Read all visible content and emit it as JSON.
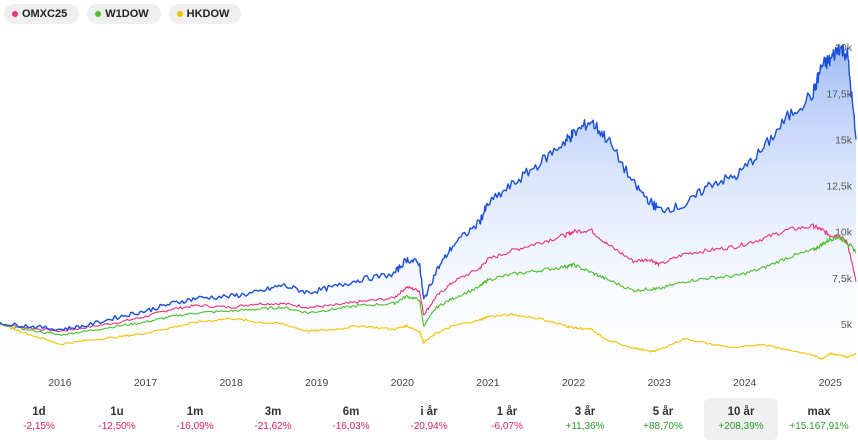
{
  "legend": [
    {
      "label": "OMXC25",
      "color": "#e8347a"
    },
    {
      "label": "W1DOW",
      "color": "#4cbf2a"
    },
    {
      "label": "HKDOW",
      "color": "#f5c000"
    }
  ],
  "colors": {
    "primary_line": "#1a4fd6",
    "area_fill_top": "#8fb0f5",
    "area_fill_bottom": "#ffffff"
  },
  "chart_data": {
    "type": "line",
    "ylim": [
      2500,
      20500
    ],
    "y_ticks": [
      5000,
      7500,
      10000,
      12500,
      15000,
      17500,
      20000
    ],
    "y_tick_labels": [
      "5k",
      "7,5k",
      "10k",
      "12,5k",
      "15k",
      "17,5k",
      "20k"
    ],
    "x_ticks": [
      2016,
      2017,
      2018,
      2019,
      2020,
      2021,
      2022,
      2023,
      2024,
      2025
    ],
    "xlim": [
      2015.3,
      2025.3
    ],
    "series": [
      {
        "name": "",
        "color": "#1a4fd6",
        "area": true,
        "x": [
          2015.3,
          2015.6,
          2016.0,
          2016.3,
          2016.7,
          2017.0,
          2017.3,
          2017.6,
          2018.0,
          2018.3,
          2018.6,
          2018.9,
          2019.2,
          2019.5,
          2019.9,
          2020.05,
          2020.2,
          2020.25,
          2020.4,
          2020.6,
          2020.9,
          2021.0,
          2021.3,
          2021.6,
          2021.9,
          2022.0,
          2022.2,
          2022.4,
          2022.7,
          2022.9,
          2023.0,
          2023.3,
          2023.6,
          2023.9,
          2024.2,
          2024.5,
          2024.8,
          2024.9,
          2025.0,
          2025.1,
          2025.2,
          2025.3
        ],
        "y": [
          5000,
          4900,
          4700,
          4900,
          5400,
          5700,
          6100,
          6400,
          6500,
          6700,
          7100,
          6700,
          7000,
          7400,
          7700,
          8500,
          8300,
          6300,
          7900,
          9300,
          10500,
          11500,
          12600,
          13700,
          14900,
          15300,
          16000,
          15000,
          12600,
          11600,
          11200,
          11400,
          12600,
          13000,
          14400,
          16200,
          17500,
          19000,
          19300,
          20000,
          19600,
          15000
        ]
      },
      {
        "name": "OMXC25",
        "color": "#e8347a",
        "x": [
          2015.3,
          2015.6,
          2016.0,
          2016.3,
          2016.7,
          2017.0,
          2017.3,
          2017.6,
          2018.0,
          2018.3,
          2018.6,
          2018.9,
          2019.2,
          2019.5,
          2019.9,
          2020.05,
          2020.2,
          2020.25,
          2020.4,
          2020.6,
          2020.9,
          2021.0,
          2021.3,
          2021.6,
          2021.9,
          2022.0,
          2022.2,
          2022.4,
          2022.7,
          2022.9,
          2023.0,
          2023.3,
          2023.6,
          2023.9,
          2024.2,
          2024.5,
          2024.8,
          2024.9,
          2025.0,
          2025.1,
          2025.2,
          2025.3
        ],
        "y": [
          5000,
          4800,
          4600,
          4800,
          5100,
          5400,
          5800,
          6000,
          5900,
          6100,
          6100,
          5900,
          6000,
          6200,
          6400,
          7000,
          6800,
          5500,
          6500,
          7300,
          8000,
          8500,
          9000,
          9400,
          9800,
          10000,
          10100,
          9300,
          8400,
          8500,
          8200,
          8800,
          9000,
          9200,
          9600,
          10100,
          10300,
          10100,
          9800,
          9800,
          9400,
          7300
        ]
      },
      {
        "name": "W1DOW",
        "color": "#4cbf2a",
        "x": [
          2015.3,
          2015.6,
          2016.0,
          2016.3,
          2016.7,
          2017.0,
          2017.3,
          2017.6,
          2018.0,
          2018.3,
          2018.6,
          2018.9,
          2019.2,
          2019.5,
          2019.9,
          2020.05,
          2020.2,
          2020.25,
          2020.4,
          2020.6,
          2020.9,
          2021.0,
          2021.3,
          2021.6,
          2021.9,
          2022.0,
          2022.2,
          2022.4,
          2022.7,
          2022.9,
          2023.0,
          2023.3,
          2023.6,
          2023.9,
          2024.2,
          2024.5,
          2024.8,
          2024.9,
          2025.0,
          2025.1,
          2025.2,
          2025.3
        ],
        "y": [
          5000,
          4700,
          4400,
          4600,
          4900,
          5100,
          5400,
          5600,
          5700,
          5800,
          5900,
          5600,
          5800,
          6000,
          6100,
          6500,
          6300,
          4900,
          5900,
          6400,
          7000,
          7400,
          7700,
          7900,
          8100,
          8200,
          7800,
          7400,
          6800,
          6900,
          6900,
          7300,
          7500,
          7600,
          8000,
          8600,
          9000,
          9300,
          9600,
          9700,
          9400,
          8900
        ]
      },
      {
        "name": "HKDOW",
        "color": "#f5c000",
        "x": [
          2015.3,
          2015.6,
          2016.0,
          2016.3,
          2016.7,
          2017.0,
          2017.3,
          2017.6,
          2018.0,
          2018.3,
          2018.6,
          2018.9,
          2019.2,
          2019.5,
          2019.9,
          2020.05,
          2020.2,
          2020.25,
          2020.4,
          2020.6,
          2020.9,
          2021.0,
          2021.3,
          2021.6,
          2021.9,
          2022.0,
          2022.2,
          2022.4,
          2022.7,
          2022.9,
          2023.0,
          2023.3,
          2023.6,
          2023.9,
          2024.2,
          2024.5,
          2024.8,
          2024.9,
          2025.0,
          2025.1,
          2025.2,
          2025.3
        ],
        "y": [
          5000,
          4500,
          3900,
          4100,
          4300,
          4500,
          4800,
          5100,
          5300,
          5100,
          5000,
          4600,
          4700,
          4900,
          4700,
          4900,
          4600,
          4000,
          4500,
          4900,
          5200,
          5400,
          5500,
          5300,
          4900,
          4800,
          4700,
          4100,
          3700,
          3500,
          3600,
          4200,
          3900,
          3700,
          3900,
          3600,
          3300,
          3100,
          3400,
          3300,
          3200,
          3400
        ]
      }
    ]
  },
  "periods": [
    {
      "label": "1d",
      "value": "-2,15%",
      "sign": "neg",
      "active": false
    },
    {
      "label": "1u",
      "value": "-12,50%",
      "sign": "neg",
      "active": false
    },
    {
      "label": "1m",
      "value": "-16,09%",
      "sign": "neg",
      "active": false
    },
    {
      "label": "3m",
      "value": "-21,62%",
      "sign": "neg",
      "active": false
    },
    {
      "label": "6m",
      "value": "-16,03%",
      "sign": "neg",
      "active": false
    },
    {
      "label": "i år",
      "value": "-20,94%",
      "sign": "neg",
      "active": false
    },
    {
      "label": "1 år",
      "value": "-6,07%",
      "sign": "neg",
      "active": false
    },
    {
      "label": "3 år",
      "value": "+11,36%",
      "sign": "pos",
      "active": false
    },
    {
      "label": "5 år",
      "value": "+88,70%",
      "sign": "pos",
      "active": false
    },
    {
      "label": "10 år",
      "value": "+208,39%",
      "sign": "pos",
      "active": true
    },
    {
      "label": "max",
      "value": "+15.167,91%",
      "sign": "pos",
      "active": false
    }
  ]
}
